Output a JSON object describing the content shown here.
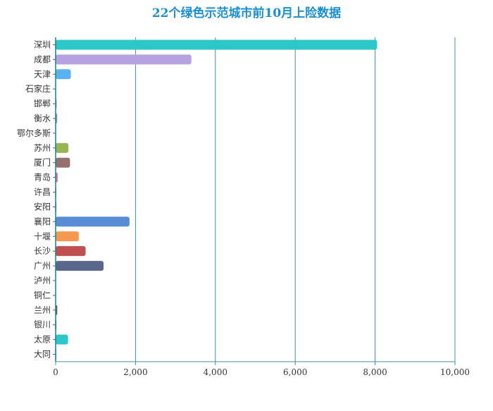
{
  "chart_data": {
    "type": "bar",
    "orientation": "horizontal",
    "title": "22个绿色示范城市前10月上险数据",
    "xlabel": "",
    "ylabel": "",
    "xlim": [
      0,
      10000
    ],
    "x_ticks": [
      0,
      2000,
      4000,
      6000,
      8000,
      10000
    ],
    "x_tick_labels": [
      "0",
      "2,000",
      "4,000",
      "6,000",
      "8,000",
      "10,000"
    ],
    "grid": "vertical",
    "categories": [
      "深圳",
      "成都",
      "天津",
      "石家庄",
      "邯郸",
      "衡水",
      "鄂尔多斯",
      "苏州",
      "厦门",
      "青岛",
      "许昌",
      "安阳",
      "襄阳",
      "十堰",
      "长沙",
      "广州",
      "泸州",
      "铜仁",
      "兰州",
      "银川",
      "太原",
      "大同"
    ],
    "values": [
      8050,
      3400,
      380,
      10,
      25,
      40,
      0,
      320,
      360,
      50,
      15,
      20,
      1850,
      580,
      750,
      1200,
      5,
      5,
      40,
      20,
      310,
      20
    ],
    "colors": [
      "#2ec7c9",
      "#b6a2de",
      "#5ab1ef",
      "#ffb980",
      "#d87a80",
      "#8d98b3",
      "#e5cf0d",
      "#97b552",
      "#95706d",
      "#dc69aa",
      "#07a2a4",
      "#9a7fd1",
      "#588dd5",
      "#f5994e",
      "#c05050",
      "#59678c",
      "#c9ab00",
      "#7eb00a",
      "#6f5553",
      "#c14089",
      "#2ec7c9",
      "#b6a2de"
    ]
  }
}
